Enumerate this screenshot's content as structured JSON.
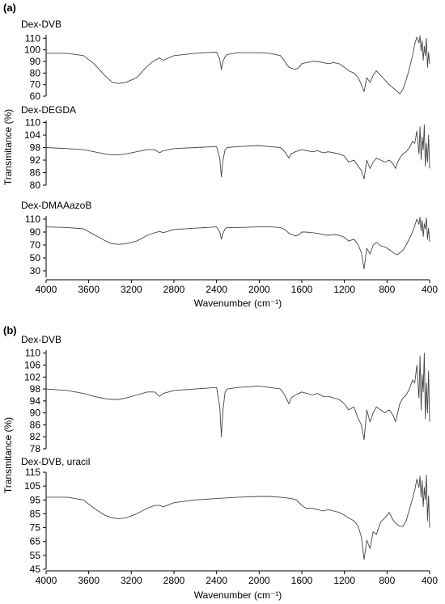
{
  "chart_data": [
    {
      "panel": "(a)",
      "type": "line",
      "xlabel": "Wavenumber (cm⁻¹)",
      "ylabel": "Transmitance (%)",
      "xlim": [
        4000,
        400
      ],
      "x_ticks": [
        4000,
        3600,
        3200,
        2800,
        2400,
        2000,
        1600,
        1200,
        800,
        400
      ],
      "grid": false,
      "subplots": [
        {
          "title": "Dex-DVB",
          "ylim": [
            60,
            113
          ],
          "y_ticks": [
            60,
            70,
            80,
            90,
            100,
            110
          ],
          "series": [
            {
              "x": [
                4000,
                3800,
                3650,
                3550,
                3450,
                3380,
                3320,
                3250,
                3150,
                3050,
                2980,
                2935,
                2900,
                2800,
                2600,
                2400,
                2370,
                2355,
                2340,
                2320,
                2300,
                2200,
                2000,
                1900,
                1800,
                1760,
                1720,
                1660,
                1625,
                1600,
                1560,
                1500,
                1450,
                1400,
                1350,
                1300,
                1250,
                1200,
                1160,
                1110,
                1070,
                1040,
                1015,
                990,
                960,
                930,
                900,
                860,
                820,
                780,
                740,
                700,
                680,
                650,
                620,
                590,
                560,
                540,
                520,
                500,
                490,
                480,
                470,
                460,
                450,
                440,
                430,
                420,
                410,
                400
              ],
              "y": [
                97,
                97,
                95,
                88,
                78,
                72,
                71,
                72,
                76,
                86,
                91,
                93,
                91,
                95,
                97,
                98,
                92,
                83,
                90,
                94,
                96,
                97.5,
                97.5,
                97,
                95,
                90,
                85,
                83,
                85,
                88,
                89,
                90,
                90,
                89,
                88,
                89,
                88,
                85,
                82,
                80,
                76,
                70,
                64,
                76,
                72,
                78,
                82,
                78,
                74,
                70,
                67,
                64,
                62,
                66,
                74,
                84,
                95,
                105,
                111,
                106,
                112,
                99,
                108,
                91,
                103,
                95,
                110,
                85,
                98,
                88
              ]
            }
          ]
        },
        {
          "title": "Dex-DEGDA",
          "ylim": [
            80,
            111
          ],
          "y_ticks": [
            80,
            86,
            92,
            98,
            104,
            110
          ],
          "series": [
            {
              "x": [
                4000,
                3800,
                3650,
                3550,
                3450,
                3380,
                3320,
                3250,
                3150,
                3050,
                2980,
                2935,
                2900,
                2800,
                2600,
                2400,
                2370,
                2355,
                2340,
                2320,
                2300,
                2200,
                2000,
                1900,
                1800,
                1760,
                1720,
                1700,
                1660,
                1600,
                1500,
                1450,
                1400,
                1350,
                1300,
                1250,
                1200,
                1160,
                1110,
                1070,
                1040,
                1015,
                990,
                960,
                930,
                900,
                860,
                820,
                780,
                740,
                720,
                700,
                680,
                650,
                620,
                590,
                560,
                540,
                520,
                500,
                490,
                480,
                470,
                460,
                450,
                440,
                430,
                420,
                410,
                400
              ],
              "y": [
                98,
                97.5,
                97,
                96,
                95,
                94.5,
                94.5,
                95,
                96,
                97,
                97,
                95.5,
                96.5,
                97.5,
                98,
                98.5,
                93,
                84,
                92,
                97,
                98,
                98.5,
                99,
                98.5,
                98,
                96,
                93,
                95,
                96,
                97,
                96,
                96.5,
                95.5,
                96,
                95.5,
                95,
                94,
                91,
                92,
                89,
                87,
                83,
                92,
                88,
                91,
                93,
                92,
                91,
                92,
                90,
                88,
                91,
                93,
                95,
                96,
                98,
                101,
                100,
                106,
                95,
                108,
                92,
                103,
                97,
                109,
                89,
                100,
                91,
                104,
                88
              ]
            }
          ]
        },
        {
          "title": "Dex-DMAAazoB",
          "ylim": [
            20,
            115
          ],
          "y_ticks": [
            30,
            50,
            70,
            90,
            110
          ],
          "series": [
            {
              "x": [
                4000,
                3800,
                3650,
                3550,
                3450,
                3380,
                3320,
                3250,
                3150,
                3050,
                2980,
                2935,
                2900,
                2800,
                2600,
                2400,
                2370,
                2355,
                2340,
                2320,
                2300,
                2200,
                2000,
                1900,
                1800,
                1760,
                1720,
                1660,
                1625,
                1600,
                1560,
                1500,
                1450,
                1400,
                1350,
                1300,
                1250,
                1200,
                1160,
                1110,
                1070,
                1040,
                1015,
                990,
                960,
                930,
                900,
                860,
                820,
                780,
                740,
                720,
                700,
                680,
                650,
                620,
                590,
                560,
                540,
                520,
                500,
                490,
                480,
                470,
                460,
                450,
                440,
                430,
                420,
                410,
                400
              ],
              "y": [
                98,
                97,
                95,
                86,
                77,
                72,
                71,
                72,
                76,
                85,
                89,
                91,
                89,
                94,
                96,
                98,
                90,
                79,
                88,
                95,
                97,
                97,
                98,
                98,
                97,
                94,
                88,
                84,
                86,
                90,
                90,
                89,
                88,
                86,
                85,
                86,
                85,
                82,
                76,
                79,
                70,
                58,
                33,
                65,
                56,
                70,
                74,
                69,
                67,
                63,
                58,
                56,
                55,
                58,
                62,
                70,
                80,
                90,
                100,
                110,
                102,
                113,
                92,
                108,
                83,
                103,
                95,
                112,
                79,
                96,
                75
              ]
            }
          ]
        }
      ]
    },
    {
      "panel": "(b)",
      "type": "line",
      "xlabel": "Wavenumber (cm⁻¹)",
      "ylabel": "Transmitance (%)",
      "xlim": [
        4000,
        400
      ],
      "x_ticks": [
        4000,
        3600,
        3200,
        2800,
        2400,
        2000,
        1600,
        1200,
        800,
        400
      ],
      "grid": false,
      "subplots": [
        {
          "title": "Dex-DVB",
          "ylim": [
            78,
            111
          ],
          "y_ticks": [
            78,
            82,
            86,
            90,
            94,
            98,
            102,
            106,
            110
          ],
          "series": [
            {
              "x": [
                4000,
                3800,
                3650,
                3550,
                3450,
                3380,
                3320,
                3250,
                3150,
                3050,
                2980,
                2935,
                2900,
                2800,
                2600,
                2400,
                2370,
                2355,
                2340,
                2320,
                2300,
                2200,
                2000,
                1900,
                1800,
                1760,
                1720,
                1700,
                1660,
                1600,
                1500,
                1450,
                1400,
                1350,
                1300,
                1250,
                1200,
                1160,
                1110,
                1070,
                1040,
                1015,
                990,
                960,
                930,
                900,
                860,
                820,
                780,
                740,
                720,
                700,
                680,
                650,
                620,
                590,
                560,
                540,
                520,
                500,
                490,
                480,
                470,
                460,
                450,
                440,
                430,
                420,
                410,
                400
              ],
              "y": [
                98,
                97.5,
                96.5,
                95.5,
                94.8,
                94.5,
                94.5,
                95,
                96,
                97,
                97,
                95.5,
                96.5,
                97.5,
                98,
                98.5,
                92,
                82,
                91,
                97,
                98,
                98.5,
                99,
                98.5,
                98,
                96,
                93,
                95,
                96,
                97,
                96,
                96.5,
                95.5,
                95.5,
                95,
                94.5,
                93,
                91,
                92,
                88,
                86,
                81,
                91,
                87,
                90,
                92,
                91,
                90,
                91,
                89,
                87,
                90,
                93,
                95,
                96,
                98,
                101,
                100,
                106,
                95,
                109,
                91,
                103,
                97,
                110,
                88,
                100,
                90,
                104,
                87
              ]
            }
          ]
        },
        {
          "title": "Dex-DVB, uracil",
          "ylim": [
            45,
            115
          ],
          "y_ticks": [
            45,
            55,
            65,
            75,
            85,
            95,
            105,
            115
          ],
          "series": [
            {
              "x": [
                4000,
                3800,
                3650,
                3550,
                3450,
                3380,
                3320,
                3250,
                3150,
                3050,
                2980,
                2935,
                2900,
                2800,
                2600,
                2400,
                2200,
                2000,
                1900,
                1800,
                1700,
                1650,
                1600,
                1560,
                1500,
                1450,
                1400,
                1350,
                1300,
                1250,
                1200,
                1160,
                1110,
                1070,
                1040,
                1015,
                990,
                960,
                930,
                900,
                860,
                820,
                780,
                740,
                700,
                680,
                650,
                620,
                590,
                560,
                540,
                520,
                500,
                490,
                480,
                470,
                460,
                450,
                440,
                430,
                420,
                410,
                400
              ],
              "y": [
                97,
                97,
                95,
                89,
                84,
                82,
                81.5,
                82,
                85,
                89,
                91,
                91,
                90,
                93,
                95,
                96,
                97,
                97.5,
                97.5,
                97,
                96,
                95,
                91,
                89,
                89,
                88,
                87,
                88,
                87,
                86,
                84,
                82,
                80,
                76,
                68,
                52,
                66,
                60,
                72,
                70,
                79,
                82,
                86,
                80,
                77,
                76,
                76,
                80,
                88,
                96,
                102,
                110,
                104,
                112,
                97,
                109,
                90,
                104,
                95,
                113,
                80,
                98,
                75
              ]
            }
          ]
        }
      ]
    }
  ]
}
